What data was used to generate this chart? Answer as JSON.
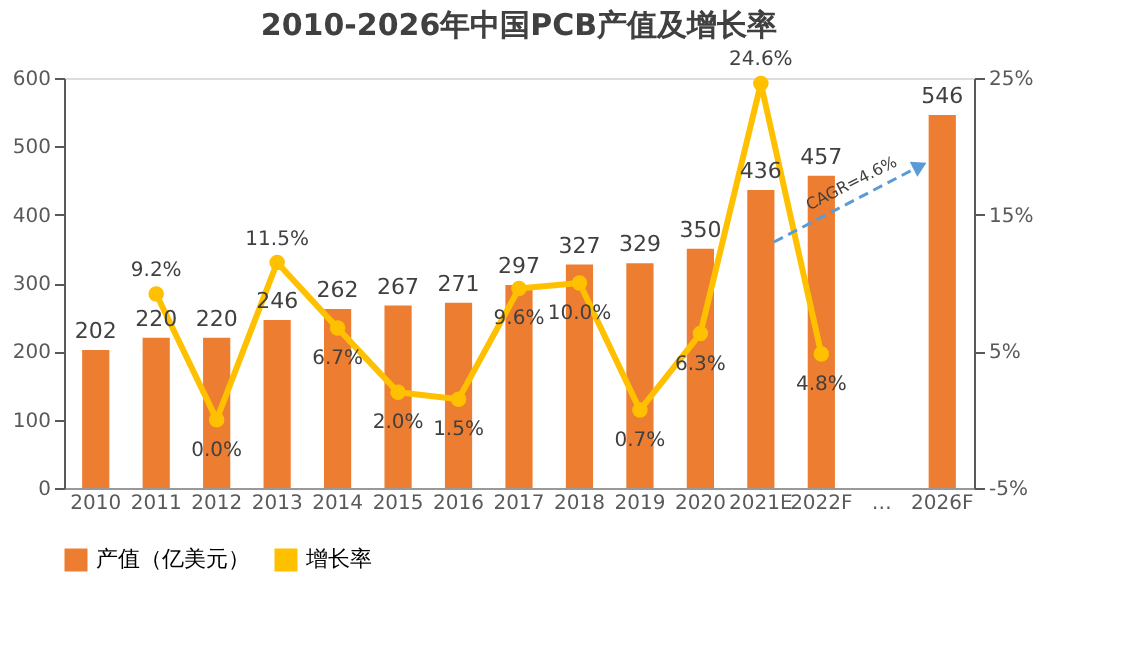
{
  "chart_data": {
    "type": "bar",
    "title": "2010-2026年中国PCB产值及增长率",
    "categories": [
      "2010",
      "2011",
      "2012",
      "2013",
      "2014",
      "2015",
      "2016",
      "2017",
      "2018",
      "2019",
      "2020",
      "2021E",
      "2022F",
      "…",
      "2026F"
    ],
    "series": [
      {
        "name": "产值（亿美元）",
        "color": "#ed7d31",
        "values": [
          202,
          220,
          220,
          246,
          262,
          267,
          271,
          297,
          327,
          329,
          350,
          436,
          457,
          null,
          546
        ]
      },
      {
        "name": "增长率",
        "type": "line",
        "axis": "y2",
        "color": "#ffc000",
        "marker": "circle",
        "values": [
          null,
          9.2,
          0.0,
          11.5,
          6.7,
          2.0,
          1.5,
          9.6,
          10.0,
          0.7,
          6.3,
          24.6,
          4.8,
          null,
          null
        ],
        "value_labels": [
          null,
          "9.2%",
          "0.0%",
          "11.5%",
          "6.7%",
          "2.0%",
          "1.5%",
          "9.6%",
          "10.0%",
          "0.7%",
          "6.3%",
          "24.6%",
          "4.8%",
          null,
          null
        ]
      }
    ],
    "ylim": [
      0,
      600
    ],
    "yticks": [
      0,
      100,
      200,
      300,
      400,
      500,
      600
    ],
    "y2lim": [
      -5,
      25
    ],
    "y2ticks": [
      {
        "value": -5,
        "label": "-5%"
      },
      {
        "value": 5,
        "label": "5%"
      },
      {
        "value": 15,
        "label": "15%"
      },
      {
        "value": 25,
        "label": "25%"
      }
    ],
    "data_labels": true,
    "grid": false,
    "legend": "bottom",
    "annotations": [
      "CAGR=4.6%"
    ]
  }
}
